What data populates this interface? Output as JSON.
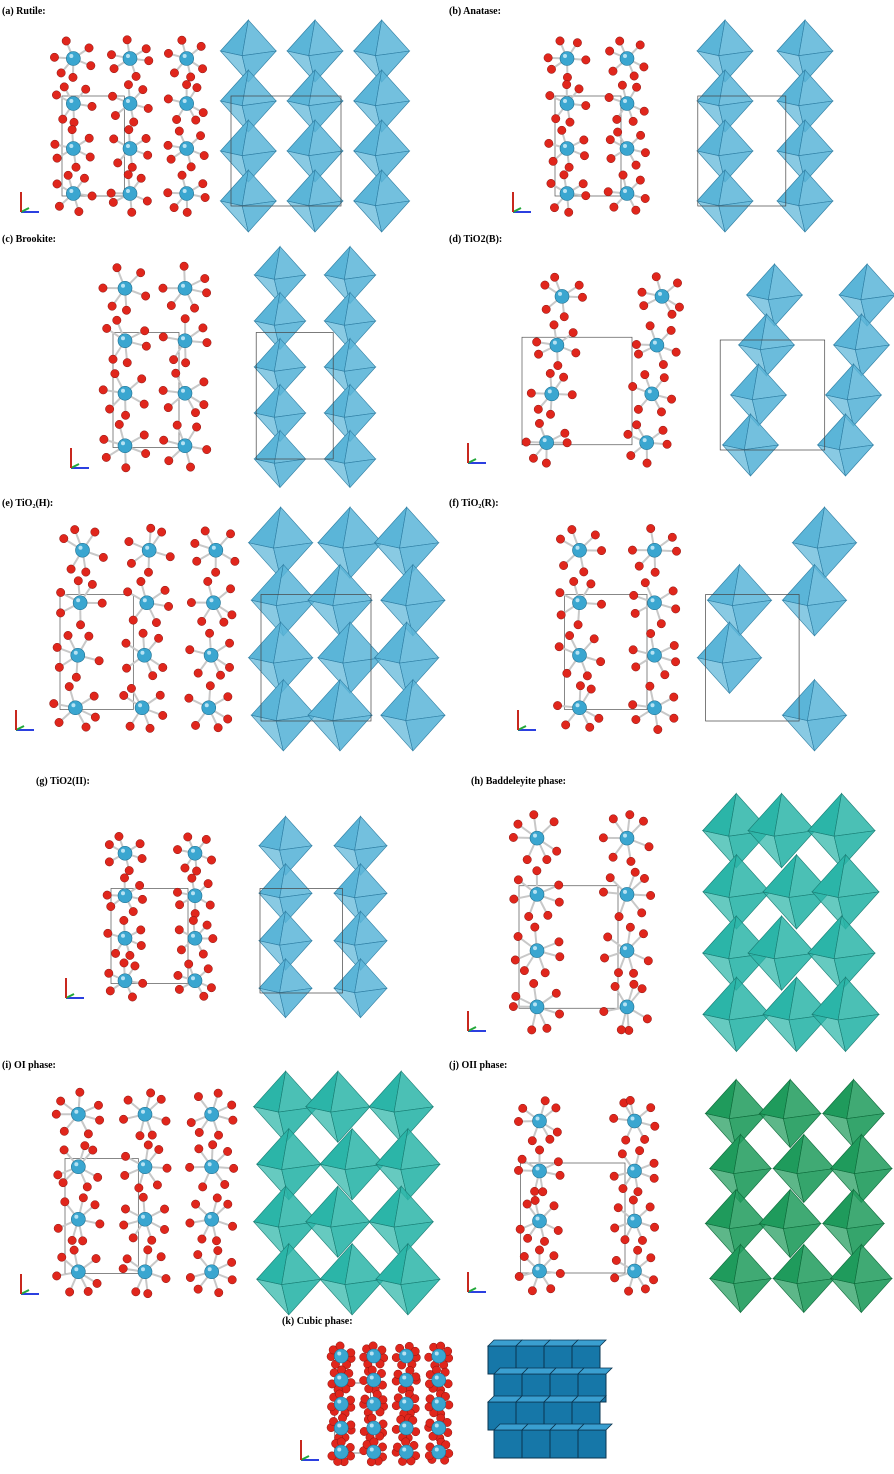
{
  "panels": [
    {
      "id": "a",
      "label": "(a) Rutile:",
      "poly_color": "#5bb5d8",
      "poly_edge": "#2f7ea3",
      "pattern": "columns"
    },
    {
      "id": "b",
      "label": "(b) Anatase:",
      "poly_color": "#5bb5d8",
      "poly_edge": "#2f7ea3",
      "pattern": "diamond"
    },
    {
      "id": "c",
      "label": "(c) Brookite:",
      "poly_color": "#5bb5d8",
      "poly_edge": "#2f7ea3",
      "pattern": "brookite"
    },
    {
      "id": "d",
      "label": "(d) TiO2(B):",
      "poly_color": "#5bb5d8",
      "poly_edge": "#2f7ea3",
      "pattern": "tilted"
    },
    {
      "id": "e",
      "label": "(e) TiO₂(H):",
      "poly_color": "#5bb5d8",
      "poly_edge": "#2f7ea3",
      "pattern": "hollandite"
    },
    {
      "id": "f",
      "label": "(f) TiO₂(R):",
      "poly_color": "#5bb5d8",
      "poly_edge": "#2f7ea3",
      "pattern": "ramsdellite"
    },
    {
      "id": "g",
      "label": "(g) TiO2(II):",
      "poly_color": "#5bb5d8",
      "poly_edge": "#2f7ea3",
      "pattern": "grid"
    },
    {
      "id": "h",
      "label": "(h) Baddeleyite phase:",
      "poly_color": "#2bb5a8",
      "poly_edge": "#1a7d74",
      "pattern": "dense"
    },
    {
      "id": "i",
      "label": "(i) OI phase:",
      "poly_color": "#2bb5a8",
      "poly_edge": "#1a7d74",
      "pattern": "dense"
    },
    {
      "id": "j",
      "label": "(j) OII phase:",
      "poly_color": "#1f9b5c",
      "poly_edge": "#0f6a3b",
      "pattern": "dense"
    },
    {
      "id": "k",
      "label": "(k) Cubic phase:",
      "poly_color": "#1677a8",
      "poly_edge": "#0b4f73",
      "pattern": "cubic"
    }
  ],
  "atoms": {
    "ti_color": "#3aa6d0",
    "o_color": "#e0261c",
    "bond_color": "#c8c8c8"
  },
  "axes": {
    "x_color": "#2b3fe0",
    "y_color": "#22a83a",
    "z_color": "#c8281e"
  }
}
